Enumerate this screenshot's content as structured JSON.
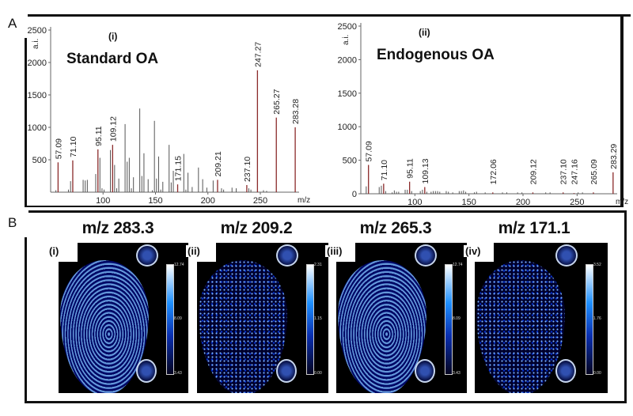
{
  "panel_labels": {
    "a": "A",
    "b": "B"
  },
  "chart_data": [
    {
      "type": "bar",
      "subtype": "mass-spectrum",
      "panel": "(i)",
      "title": "Standard OA",
      "xlabel": "m/z",
      "ylabel": "a.i.",
      "xlim": [
        50,
        290
      ],
      "ylim": [
        0,
        2500
      ],
      "xticks": [
        "100",
        "150",
        "200",
        "250"
      ],
      "yticks": [
        "500",
        "1000",
        "1500",
        "2000",
        "2500"
      ],
      "grid": false,
      "color_labeled": "#8b2a2a",
      "color_other": "#555555",
      "labeled_peaks": [
        {
          "mz": 57.09,
          "intensity": 460,
          "label": "57.09"
        },
        {
          "mz": 71.1,
          "intensity": 490,
          "label": "71.10"
        },
        {
          "mz": 95.11,
          "intensity": 660,
          "label": "95.11"
        },
        {
          "mz": 109.12,
          "intensity": 730,
          "label": "109.12"
        },
        {
          "mz": 171.15,
          "intensity": 120,
          "label": "171.15"
        },
        {
          "mz": 209.21,
          "intensity": 190,
          "label": "209.21"
        },
        {
          "mz": 237.1,
          "intensity": 110,
          "label": "237.10"
        },
        {
          "mz": 247.27,
          "intensity": 1880,
          "label": "247.27"
        },
        {
          "mz": 265.27,
          "intensity": 1150,
          "label": "265.27"
        },
        {
          "mz": 283.28,
          "intensity": 1000,
          "label": "283.28"
        }
      ],
      "other_peaks": [
        [
          55,
          30
        ],
        [
          67,
          40
        ],
        [
          69,
          170
        ],
        [
          81,
          190
        ],
        [
          83,
          180
        ],
        [
          85,
          190
        ],
        [
          93,
          280
        ],
        [
          97,
          530
        ],
        [
          99,
          60
        ],
        [
          101,
          40
        ],
        [
          107,
          650
        ],
        [
          111,
          420
        ],
        [
          113,
          60
        ],
        [
          115,
          210
        ],
        [
          121,
          1050
        ],
        [
          123,
          470
        ],
        [
          125,
          530
        ],
        [
          127,
          60
        ],
        [
          129,
          230
        ],
        [
          135,
          1290
        ],
        [
          137,
          250
        ],
        [
          139,
          600
        ],
        [
          143,
          200
        ],
        [
          147,
          30
        ],
        [
          149,
          1100
        ],
        [
          151,
          210
        ],
        [
          153,
          550
        ],
        [
          155,
          40
        ],
        [
          157,
          160
        ],
        [
          163,
          730
        ],
        [
          165,
          150
        ],
        [
          167,
          330
        ],
        [
          177,
          590
        ],
        [
          179,
          40
        ],
        [
          181,
          300
        ],
        [
          185,
          80
        ],
        [
          191,
          380
        ],
        [
          195,
          200
        ],
        [
          199,
          70
        ],
        [
          205,
          180
        ],
        [
          213,
          60
        ],
        [
          215,
          40
        ],
        [
          223,
          70
        ],
        [
          227,
          60
        ],
        [
          239,
          60
        ],
        [
          241,
          40
        ],
        [
          253,
          30
        ],
        [
          256,
          20
        ]
      ]
    },
    {
      "type": "bar",
      "subtype": "mass-spectrum",
      "panel": "(ii)",
      "title": "Endogenous OA",
      "xlabel": "m/z",
      "ylabel": "a.i.",
      "xlim": [
        50,
        290
      ],
      "ylim": [
        0,
        2500
      ],
      "xticks": [
        "100",
        "150",
        "200",
        "250"
      ],
      "yticks": [
        "0",
        "500",
        "1000",
        "1500",
        "2000",
        "2500"
      ],
      "grid": false,
      "color_labeled": "#8b2a2a",
      "color_other": "#555555",
      "labeled_peaks": [
        {
          "mz": 57.09,
          "intensity": 430,
          "label": "57.09"
        },
        {
          "mz": 71.1,
          "intensity": 150,
          "label": "71.10"
        },
        {
          "mz": 95.11,
          "intensity": 180,
          "label": "95.11"
        },
        {
          "mz": 109.13,
          "intensity": 100,
          "label": "109.13"
        },
        {
          "mz": 172.06,
          "intensity": 20,
          "label": "172.06"
        },
        {
          "mz": 209.12,
          "intensity": 20,
          "label": "209.12"
        },
        {
          "mz": 237.1,
          "intensity": 20,
          "label": "237.10"
        },
        {
          "mz": 247.16,
          "intensity": 10,
          "label": "247.16"
        },
        {
          "mz": 265.09,
          "intensity": 20,
          "label": "265.09"
        },
        {
          "mz": 283.29,
          "intensity": 320,
          "label": "283.29"
        }
      ],
      "other_peaks": [
        [
          55,
          110
        ],
        [
          67,
          100
        ],
        [
          69,
          120
        ],
        [
          73,
          40
        ],
        [
          79,
          20
        ],
        [
          81,
          50
        ],
        [
          83,
          30
        ],
        [
          85,
          30
        ],
        [
          91,
          60
        ],
        [
          93,
          60
        ],
        [
          97,
          40
        ],
        [
          105,
          40
        ],
        [
          107,
          60
        ],
        [
          111,
          30
        ],
        [
          115,
          30
        ],
        [
          117,
          40
        ],
        [
          119,
          40
        ],
        [
          121,
          40
        ],
        [
          123,
          30
        ],
        [
          129,
          40
        ],
        [
          131,
          30
        ],
        [
          135,
          20
        ],
        [
          141,
          40
        ],
        [
          143,
          40
        ],
        [
          145,
          50
        ],
        [
          147,
          30
        ],
        [
          155,
          20
        ],
        [
          157,
          30
        ],
        [
          165,
          20
        ],
        [
          181,
          20
        ],
        [
          185,
          20
        ],
        [
          195,
          20
        ],
        [
          199,
          20
        ],
        [
          221,
          20
        ],
        [
          225,
          20
        ],
        [
          251,
          20
        ],
        [
          255,
          20
        ]
      ]
    }
  ],
  "images": [
    {
      "label": "(i)",
      "title": "m/z 283.3",
      "colorbar": [
        "12.74",
        "8.09",
        "3.43"
      ],
      "pattern": "ridges"
    },
    {
      "label": "(ii)",
      "title": "m/z 209.2",
      "colorbar": [
        "2.31",
        "1.15",
        "0.00"
      ],
      "pattern": "noisy"
    },
    {
      "label": "(iii)",
      "title": "m/z 265.3",
      "colorbar": [
        "12.74",
        "8.09",
        "3.43"
      ],
      "pattern": "ridges"
    },
    {
      "label": "(iv)",
      "title": "m/z 171.1",
      "colorbar": [
        "3.52",
        "1.76",
        "0.00"
      ],
      "pattern": "noisy"
    }
  ],
  "colormap": [
    "#050520",
    "#0a2fb0",
    "#1e90ff",
    "#ffffff"
  ]
}
